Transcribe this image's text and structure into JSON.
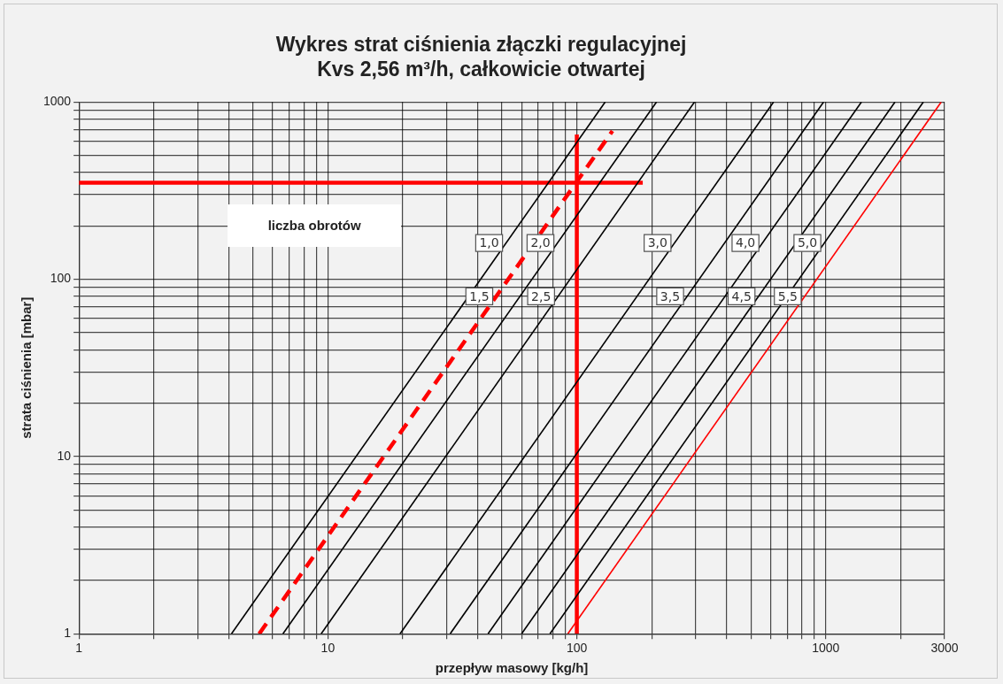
{
  "chart_data": {
    "type": "line",
    "title": "Wykres strat ciśnienia złączki regulacyjnej\nKvs 2,56 m³/h, całkowicie otwartej",
    "xlabel": "przepływ masowy [kg/h]",
    "ylabel": "strata ciśnienia [mbar]",
    "legend_title": "liczba obrotów",
    "log": "xy",
    "grid": true,
    "legend": false,
    "marker": "none",
    "xlim": [
      1,
      3000
    ],
    "ylim": [
      1,
      1000
    ],
    "xticks": [
      1,
      {
        "value": 2,
        "label": null
      },
      {
        "value": 3,
        "label": null
      },
      {
        "value": 4,
        "label": null
      },
      {
        "value": 5,
        "label": null
      },
      {
        "value": 6,
        "label": null
      },
      {
        "value": 7,
        "label": null
      },
      {
        "value": 8,
        "label": null
      },
      {
        "value": 9,
        "label": null
      },
      10,
      {
        "value": 20,
        "label": null
      },
      {
        "value": 30,
        "label": null
      },
      {
        "value": 40,
        "label": null
      },
      {
        "value": 50,
        "label": null
      },
      {
        "value": 60,
        "label": null
      },
      {
        "value": 70,
        "label": null
      },
      {
        "value": 80,
        "label": null
      },
      {
        "value": 90,
        "label": null
      },
      100,
      {
        "value": 200,
        "label": null
      },
      {
        "value": 300,
        "label": null
      },
      {
        "value": 400,
        "label": null
      },
      {
        "value": 500,
        "label": null
      },
      {
        "value": 600,
        "label": null
      },
      {
        "value": 700,
        "label": null
      },
      {
        "value": 800,
        "label": null
      },
      {
        "value": 900,
        "label": null
      },
      1000,
      {
        "value": 2000,
        "label": null
      },
      3000
    ],
    "yticks": [
      1,
      {
        "value": 2,
        "label": null
      },
      {
        "value": 3,
        "label": null
      },
      {
        "value": 4,
        "label": null
      },
      {
        "value": 5,
        "label": null
      },
      {
        "value": 6,
        "label": null
      },
      {
        "value": 7,
        "label": null
      },
      {
        "value": 8,
        "label": null
      },
      {
        "value": 9,
        "label": null
      },
      10,
      {
        "value": 20,
        "label": null
      },
      {
        "value": 30,
        "label": null
      },
      {
        "value": 40,
        "label": null
      },
      {
        "value": 50,
        "label": null
      },
      {
        "value": 60,
        "label": null
      },
      {
        "value": 70,
        "label": null
      },
      {
        "value": 80,
        "label": null
      },
      {
        "value": 90,
        "label": null
      },
      100,
      {
        "value": 200,
        "label": null
      },
      {
        "value": 300,
        "label": null
      },
      {
        "value": 400,
        "label": null
      },
      {
        "value": 500,
        "label": null
      },
      {
        "value": 600,
        "label": null
      },
      {
        "value": 700,
        "label": null
      },
      {
        "value": 800,
        "label": null
      },
      {
        "value": 900,
        "label": null
      },
      1000
    ],
    "series": [
      {
        "name": "1,0",
        "color": "#000000",
        "x": [
          4.1,
          130
        ],
        "values": [
          1,
          1000
        ]
      },
      {
        "name": "1,5",
        "color": "#ff0000",
        "line_style": "dashed",
        "x": [
          5.3,
          139
        ],
        "values": [
          1,
          686
        ]
      },
      {
        "name": "2,0",
        "color": "#000000",
        "x": [
          6.6,
          209
        ],
        "values": [
          1,
          1000
        ]
      },
      {
        "name": "2,5",
        "color": "#000000",
        "x": [
          9.4,
          297
        ],
        "values": [
          1,
          1000
        ]
      },
      {
        "name": "3,0",
        "color": "#000000",
        "x": [
          19.5,
          617
        ],
        "values": [
          1,
          1000
        ]
      },
      {
        "name": "3,5",
        "color": "#000000",
        "x": [
          31,
          980
        ],
        "values": [
          1,
          1000
        ]
      },
      {
        "name": "4,0",
        "color": "#000000",
        "x": [
          44,
          1391
        ],
        "values": [
          1,
          1000
        ]
      },
      {
        "name": "4,5",
        "color": "#000000",
        "x": [
          60,
          1897
        ],
        "values": [
          1,
          1000
        ]
      },
      {
        "name": "5,0",
        "color": "#000000",
        "x": [
          78,
          2466
        ],
        "values": [
          1,
          1000
        ]
      },
      {
        "name": "5,5",
        "color": "#ff0000",
        "x": [
          92,
          2909
        ],
        "values": [
          1,
          1000
        ]
      },
      {
        "color": "#ff0000",
        "x": [
          1,
          184
        ],
        "values": [
          350,
          350
        ]
      },
      {
        "color": "#ff0000",
        "x": [
          100,
          100
        ],
        "values": [
          1,
          655
        ]
      }
    ]
  }
}
